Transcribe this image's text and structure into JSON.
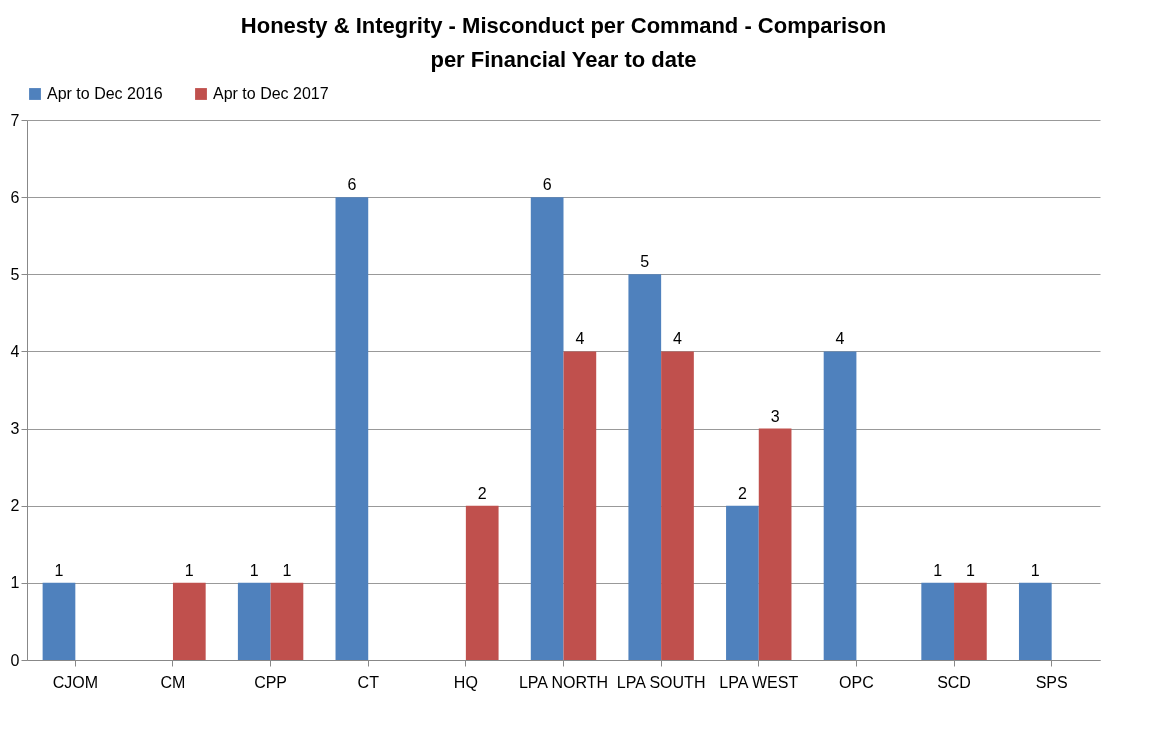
{
  "chart_data": {
    "type": "bar",
    "title": "Honesty & Integrity - Misconduct per Command - Comparison per Financial Year to date",
    "categories": [
      "CJOM",
      "CM",
      "CPP",
      "CT",
      "HQ",
      "LPA NORTH",
      "LPA SOUTH",
      "LPA WEST",
      "OPC",
      "SCD",
      "SPS"
    ],
    "series": [
      {
        "name": "Apr to Dec 2016",
        "color": "#4f81bd",
        "values": [
          1,
          null,
          1,
          6,
          null,
          6,
          5,
          2,
          4,
          1,
          1
        ]
      },
      {
        "name": "Apr to Dec 2017",
        "color": "#c0504d",
        "values": [
          null,
          1,
          1,
          null,
          2,
          4,
          4,
          3,
          null,
          1,
          null
        ]
      }
    ],
    "ylim": [
      0,
      7
    ],
    "yticks": [
      0,
      1,
      2,
      3,
      4,
      5,
      6,
      7
    ],
    "grid": "y",
    "legend": "top",
    "data_labels": true
  }
}
